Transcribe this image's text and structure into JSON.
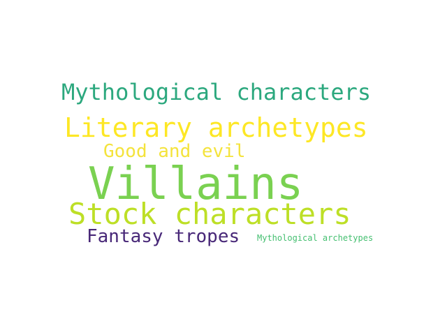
{
  "word_cloud": {
    "words": [
      {
        "text": "Mythological characters",
        "color": "#2ca87e"
      },
      {
        "text": "Literary archetypes",
        "color": "#fde725"
      },
      {
        "text": "Good and evil",
        "color": "#f4e33c"
      },
      {
        "text": "Villains",
        "color": "#7ad151"
      },
      {
        "text": "Stock characters",
        "color": "#bddf26"
      },
      {
        "text": "Fantasy tropes",
        "color": "#482878"
      },
      {
        "text": "Mythological archetypes",
        "color": "#44bf70"
      }
    ]
  }
}
